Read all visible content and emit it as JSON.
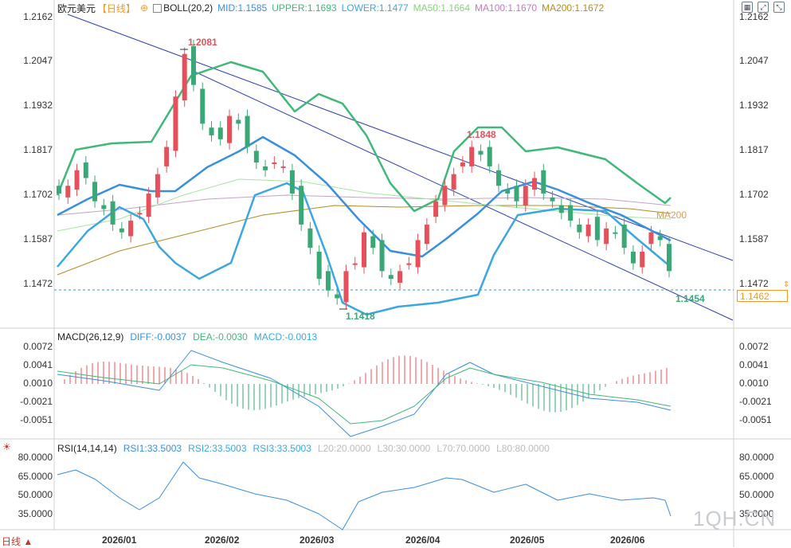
{
  "legend": {
    "symbol": "欧元美元",
    "period": "【日线】",
    "indicator": "BOLL(20,2)",
    "mid": "MID:1.1585",
    "upper": "UPPER:1.1693",
    "lower": "LOWER:1.1477",
    "ma50": "MA50:1.1664",
    "ma100": "MA100:1.1670",
    "ma200": "MA200:1.1672"
  },
  "colors": {
    "up": "#e5505a",
    "down": "#3aa876",
    "mid": "#3a8fdc",
    "band": "#3fb87a",
    "lower": "#3aa7e0",
    "ma50": "#a8e4a0",
    "ma100": "#c9a0c8",
    "ma200": "#b58a20",
    "channel": "#2f3fb0",
    "accent": "#f09a2a"
  },
  "price_axis": [
    "1.2162",
    "1.2047",
    "1.1932",
    "1.1817",
    "1.1702",
    "1.1587",
    "1.1472"
  ],
  "current_price": "1.1462",
  "annotations": {
    "high": "1.2081",
    "high2": "1.1848",
    "low": "1.1418",
    "last_low": "1.1454",
    "ma200_label": "MA200"
  },
  "macd": {
    "title": "MACD(26,12,9)",
    "diff": "DIFF:-0.0037",
    "dea": "DEA:-0.0030",
    "macd": "MACD:-0.0013",
    "axis": [
      "0.0072",
      "0.0041",
      "0.0010",
      "-0.0021",
      "-0.0051"
    ]
  },
  "rsi": {
    "title": "RSI(14,14,14)",
    "rsi1": "RSI1:33.5003",
    "rsi2": "RSI2:33.5003",
    "rsi3": "RSI3:33.5003",
    "l20": "L20:20.0000",
    "l30": "L30:30.0000",
    "l70": "L70:70.0000",
    "l80": "L80:80.0000",
    "axis": [
      "80.0000",
      "65.0000",
      "50.0000",
      "35.0000"
    ]
  },
  "x_axis": [
    "2026/01",
    "2026/02",
    "2026/03",
    "2026/04",
    "2026/05",
    "2026/06"
  ],
  "period_button": "日线 ▲",
  "watermark": "1QH.CN"
}
